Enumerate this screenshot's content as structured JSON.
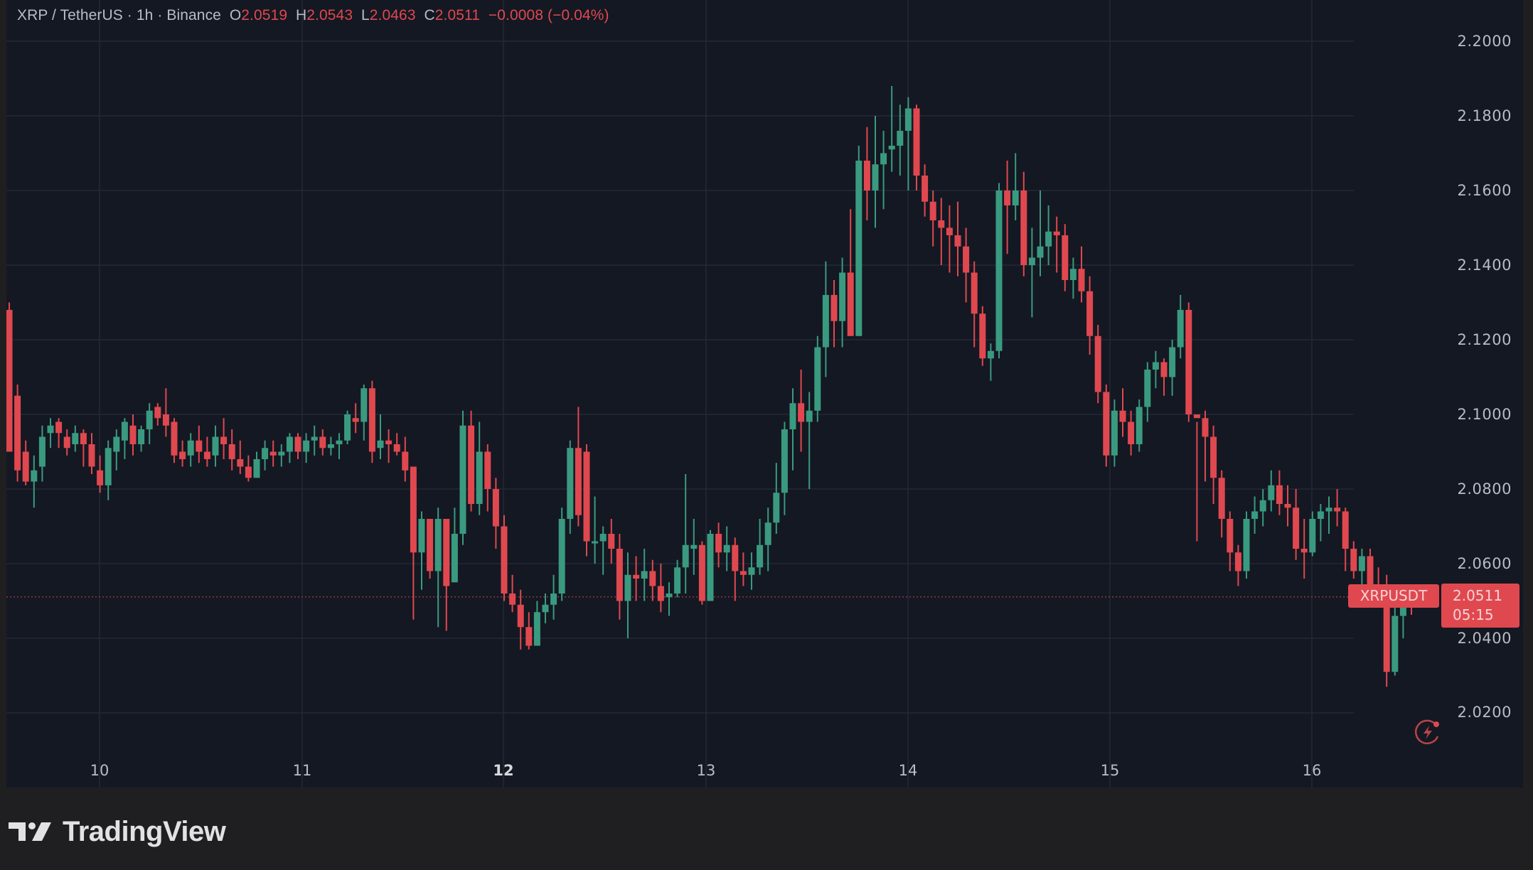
{
  "header": {
    "symbol": "XRP / TetherUS",
    "sep1": " · ",
    "interval": "1h",
    "sep2": " · ",
    "exchange": "Binance",
    "open_label": "O",
    "open": "2.0519",
    "high_label": "H",
    "high": "2.0543",
    "low_label": "L",
    "low": "2.0463",
    "close_label": "C",
    "close": "2.0511",
    "change": "−0.0008 (−0.04%)"
  },
  "price_axis": {
    "ticks": [
      "2.2000",
      "2.1800",
      "2.1600",
      "2.1400",
      "2.1200",
      "2.1000",
      "2.0800",
      "2.0600",
      "2.0400",
      "2.0200"
    ]
  },
  "time_axis": {
    "ticks": [
      "10",
      "11",
      "12",
      "13",
      "14",
      "15",
      "16"
    ]
  },
  "last_price": {
    "symbol_label": "XRPUSDT",
    "price": "2.0511",
    "countdown": "05:15"
  },
  "branding": {
    "logo_text": "TradingView"
  },
  "colors": {
    "up": "#3a9a80",
    "down": "#e0484f",
    "background": "#141822",
    "grid": "#232838",
    "axis_text": "#b9bcc4"
  },
  "chart_data": {
    "type": "candlestick",
    "title": "XRP / TetherUS · 1h · Binance",
    "xlabel": "",
    "ylabel": "",
    "ylim": [
      2.008,
      2.206
    ],
    "x_ticks": [
      "10",
      "11",
      "12",
      "13",
      "14",
      "15",
      "16"
    ],
    "y_ticks": [
      2.02,
      2.04,
      2.06,
      2.08,
      2.1,
      2.12,
      2.14,
      2.16,
      2.18,
      2.2
    ],
    "grid": true,
    "last_price": 2.0511,
    "ohlc": [
      [
        2.128,
        2.13,
        2.09,
        2.09
      ],
      [
        2.105,
        2.108,
        2.082,
        2.085
      ],
      [
        2.09,
        2.093,
        2.081,
        2.082
      ],
      [
        2.082,
        2.089,
        2.075,
        2.085
      ],
      [
        2.086,
        2.097,
        2.082,
        2.094
      ],
      [
        2.095,
        2.099,
        2.091,
        2.097
      ],
      [
        2.098,
        2.099,
        2.091,
        2.095
      ],
      [
        2.094,
        2.096,
        2.089,
        2.091
      ],
      [
        2.092,
        2.097,
        2.09,
        2.095
      ],
      [
        2.095,
        2.096,
        2.086,
        2.092
      ],
      [
        2.092,
        2.095,
        2.084,
        2.086
      ],
      [
        2.085,
        2.089,
        2.079,
        2.081
      ],
      [
        2.081,
        2.093,
        2.077,
        2.091
      ],
      [
        2.09,
        2.096,
        2.085,
        2.094
      ],
      [
        2.093,
        2.099,
        2.088,
        2.098
      ],
      [
        2.097,
        2.1,
        2.089,
        2.092
      ],
      [
        2.092,
        2.097,
        2.09,
        2.096
      ],
      [
        2.096,
        2.103,
        2.092,
        2.101
      ],
      [
        2.102,
        2.103,
        2.097,
        2.099
      ],
      [
        2.1,
        2.107,
        2.094,
        2.097
      ],
      [
        2.098,
        2.099,
        2.087,
        2.089
      ],
      [
        2.09,
        2.093,
        2.086,
        2.088
      ],
      [
        2.089,
        2.095,
        2.086,
        2.093
      ],
      [
        2.093,
        2.097,
        2.087,
        2.09
      ],
      [
        2.09,
        2.094,
        2.086,
        2.088
      ],
      [
        2.089,
        2.097,
        2.086,
        2.094
      ],
      [
        2.094,
        2.099,
        2.088,
        2.092
      ],
      [
        2.092,
        2.096,
        2.085,
        2.088
      ],
      [
        2.088,
        2.093,
        2.084,
        2.086
      ],
      [
        2.086,
        2.089,
        2.082,
        2.083
      ],
      [
        2.083,
        2.09,
        2.083,
        2.088
      ],
      [
        2.088,
        2.093,
        2.085,
        2.091
      ],
      [
        2.09,
        2.093,
        2.086,
        2.089
      ],
      [
        2.089,
        2.092,
        2.086,
        2.09
      ],
      [
        2.09,
        2.095,
        2.087,
        2.094
      ],
      [
        2.094,
        2.095,
        2.088,
        2.09
      ],
      [
        2.09,
        2.095,
        2.087,
        2.093
      ],
      [
        2.093,
        2.097,
        2.089,
        2.094
      ],
      [
        2.094,
        2.096,
        2.089,
        2.091
      ],
      [
        2.091,
        2.094,
        2.089,
        2.092
      ],
      [
        2.092,
        2.095,
        2.088,
        2.093
      ],
      [
        2.093,
        2.101,
        2.092,
        2.1
      ],
      [
        2.099,
        2.103,
        2.095,
        2.098
      ],
      [
        2.098,
        2.108,
        2.093,
        2.107
      ],
      [
        2.107,
        2.109,
        2.087,
        2.09
      ],
      [
        2.091,
        2.1,
        2.088,
        2.093
      ],
      [
        2.093,
        2.096,
        2.087,
        2.092
      ],
      [
        2.092,
        2.095,
        2.089,
        2.09
      ],
      [
        2.09,
        2.094,
        2.082,
        2.085
      ],
      [
        2.086,
        2.086,
        2.045,
        2.063
      ],
      [
        2.063,
        2.074,
        2.053,
        2.072
      ],
      [
        2.072,
        2.072,
        2.056,
        2.058
      ],
      [
        2.058,
        2.075,
        2.043,
        2.072
      ],
      [
        2.072,
        2.072,
        2.042,
        2.054
      ],
      [
        2.055,
        2.075,
        2.055,
        2.068
      ],
      [
        2.068,
        2.101,
        2.065,
        2.097
      ],
      [
        2.097,
        2.101,
        2.074,
        2.076
      ],
      [
        2.076,
        2.098,
        2.073,
        2.09
      ],
      [
        2.09,
        2.092,
        2.074,
        2.08
      ],
      [
        2.08,
        2.083,
        2.064,
        2.07
      ],
      [
        2.07,
        2.073,
        2.05,
        2.052
      ],
      [
        2.052,
        2.057,
        2.047,
        2.049
      ],
      [
        2.049,
        2.053,
        2.037,
        2.043
      ],
      [
        2.043,
        2.047,
        2.037,
        2.038
      ],
      [
        2.038,
        2.05,
        2.038,
        2.047
      ],
      [
        2.047,
        2.052,
        2.044,
        2.049
      ],
      [
        2.049,
        2.057,
        2.045,
        2.052
      ],
      [
        2.052,
        2.075,
        2.05,
        2.072
      ],
      [
        2.072,
        2.093,
        2.068,
        2.091
      ],
      [
        2.091,
        2.102,
        2.07,
        2.073
      ],
      [
        2.09,
        2.092,
        2.062,
        2.066
      ],
      [
        2.066,
        2.078,
        2.06,
        2.066
      ],
      [
        2.066,
        2.07,
        2.057,
        2.068
      ],
      [
        2.068,
        2.072,
        2.06,
        2.064
      ],
      [
        2.064,
        2.068,
        2.045,
        2.05
      ],
      [
        2.05,
        2.063,
        2.04,
        2.057
      ],
      [
        2.057,
        2.062,
        2.05,
        2.056
      ],
      [
        2.056,
        2.064,
        2.05,
        2.058
      ],
      [
        2.058,
        2.061,
        2.05,
        2.054
      ],
      [
        2.054,
        2.06,
        2.047,
        2.05
      ],
      [
        2.051,
        2.055,
        2.046,
        2.052
      ],
      [
        2.052,
        2.061,
        2.051,
        2.059
      ],
      [
        2.059,
        2.084,
        2.052,
        2.065
      ],
      [
        2.064,
        2.072,
        2.057,
        2.065
      ],
      [
        2.065,
        2.066,
        2.049,
        2.05
      ],
      [
        2.05,
        2.069,
        2.05,
        2.068
      ],
      [
        2.068,
        2.071,
        2.059,
        2.063
      ],
      [
        2.063,
        2.07,
        2.058,
        2.065
      ],
      [
        2.065,
        2.067,
        2.05,
        2.058
      ],
      [
        2.058,
        2.063,
        2.054,
        2.057
      ],
      [
        2.057,
        2.063,
        2.053,
        2.059
      ],
      [
        2.059,
        2.072,
        2.057,
        2.065
      ],
      [
        2.065,
        2.075,
        2.058,
        2.071
      ],
      [
        2.071,
        2.087,
        2.068,
        2.079
      ],
      [
        2.079,
        2.098,
        2.073,
        2.096
      ],
      [
        2.096,
        2.107,
        2.085,
        2.103
      ],
      [
        2.103,
        2.112,
        2.09,
        2.098
      ],
      [
        2.098,
        2.106,
        2.08,
        2.101
      ],
      [
        2.101,
        2.121,
        2.098,
        2.118
      ],
      [
        2.118,
        2.141,
        2.11,
        2.132
      ],
      [
        2.132,
        2.136,
        2.118,
        2.125
      ],
      [
        2.125,
        2.142,
        2.118,
        2.138
      ],
      [
        2.138,
        2.155,
        2.121,
        2.121
      ],
      [
        2.121,
        2.172,
        2.121,
        2.168
      ],
      [
        2.168,
        2.177,
        2.152,
        2.16
      ],
      [
        2.16,
        2.18,
        2.15,
        2.167
      ],
      [
        2.167,
        2.176,
        2.155,
        2.17
      ],
      [
        2.171,
        2.188,
        2.165,
        2.172
      ],
      [
        2.172,
        2.183,
        2.164,
        2.176
      ],
      [
        2.176,
        2.185,
        2.16,
        2.182
      ],
      [
        2.182,
        2.183,
        2.16,
        2.164
      ],
      [
        2.164,
        2.167,
        2.153,
        2.157
      ],
      [
        2.157,
        2.16,
        2.145,
        2.152
      ],
      [
        2.152,
        2.158,
        2.14,
        2.15
      ],
      [
        2.15,
        2.156,
        2.138,
        2.148
      ],
      [
        2.148,
        2.157,
        2.137,
        2.145
      ],
      [
        2.145,
        2.15,
        2.13,
        2.138
      ],
      [
        2.138,
        2.141,
        2.118,
        2.127
      ],
      [
        2.127,
        2.129,
        2.113,
        2.115
      ],
      [
        2.115,
        2.119,
        2.109,
        2.117
      ],
      [
        2.117,
        2.162,
        2.115,
        2.16
      ],
      [
        2.16,
        2.168,
        2.143,
        2.156
      ],
      [
        2.156,
        2.17,
        2.152,
        2.16
      ],
      [
        2.16,
        2.165,
        2.137,
        2.14
      ],
      [
        2.14,
        2.15,
        2.126,
        2.142
      ],
      [
        2.142,
        2.16,
        2.137,
        2.145
      ],
      [
        2.145,
        2.156,
        2.14,
        2.149
      ],
      [
        2.149,
        2.153,
        2.138,
        2.148
      ],
      [
        2.148,
        2.151,
        2.133,
        2.136
      ],
      [
        2.136,
        2.142,
        2.131,
        2.139
      ],
      [
        2.139,
        2.145,
        2.13,
        2.133
      ],
      [
        2.133,
        2.137,
        2.116,
        2.121
      ],
      [
        2.121,
        2.124,
        2.103,
        2.106
      ],
      [
        2.106,
        2.108,
        2.086,
        2.089
      ],
      [
        2.089,
        2.104,
        2.086,
        2.101
      ],
      [
        2.101,
        2.107,
        2.094,
        2.098
      ],
      [
        2.098,
        2.101,
        2.089,
        2.092
      ],
      [
        2.092,
        2.104,
        2.09,
        2.102
      ],
      [
        2.102,
        2.114,
        2.098,
        2.112
      ],
      [
        2.112,
        2.117,
        2.107,
        2.114
      ],
      [
        2.114,
        2.115,
        2.105,
        2.11
      ],
      [
        2.11,
        2.12,
        2.105,
        2.118
      ],
      [
        2.118,
        2.132,
        2.115,
        2.128
      ],
      [
        2.128,
        2.13,
        2.098,
        2.1
      ],
      [
        2.1,
        2.098,
        2.066,
        2.099
      ],
      [
        2.099,
        2.101,
        2.082,
        2.094
      ],
      [
        2.094,
        2.097,
        2.076,
        2.083
      ],
      [
        2.083,
        2.085,
        2.067,
        2.072
      ],
      [
        2.072,
        2.074,
        2.058,
        2.063
      ],
      [
        2.063,
        2.065,
        2.054,
        2.058
      ],
      [
        2.058,
        2.074,
        2.056,
        2.072
      ],
      [
        2.072,
        2.078,
        2.068,
        2.074
      ],
      [
        2.074,
        2.08,
        2.07,
        2.077
      ],
      [
        2.077,
        2.085,
        2.074,
        2.081
      ],
      [
        2.081,
        2.085,
        2.073,
        2.076
      ],
      [
        2.076,
        2.081,
        2.07,
        2.075
      ],
      [
        2.075,
        2.08,
        2.061,
        2.064
      ],
      [
        2.064,
        2.072,
        2.056,
        2.063
      ],
      [
        2.063,
        2.074,
        2.062,
        2.072
      ],
      [
        2.072,
        2.076,
        2.066,
        2.074
      ],
      [
        2.074,
        2.078,
        2.068,
        2.075
      ],
      [
        2.075,
        2.08,
        2.07,
        2.074
      ],
      [
        2.074,
        2.075,
        2.058,
        2.064
      ],
      [
        2.064,
        2.066,
        2.056,
        2.058
      ],
      [
        2.058,
        2.064,
        2.054,
        2.062
      ],
      [
        2.062,
        2.064,
        2.052,
        2.054
      ],
      [
        2.054,
        2.059,
        2.049,
        2.053
      ],
      [
        2.053,
        2.057,
        2.027,
        2.031
      ],
      [
        2.031,
        2.049,
        2.03,
        2.046
      ],
      [
        2.046,
        2.052,
        2.04,
        2.0519
      ],
      [
        2.0519,
        2.0543,
        2.0463,
        2.0511
      ]
    ]
  }
}
